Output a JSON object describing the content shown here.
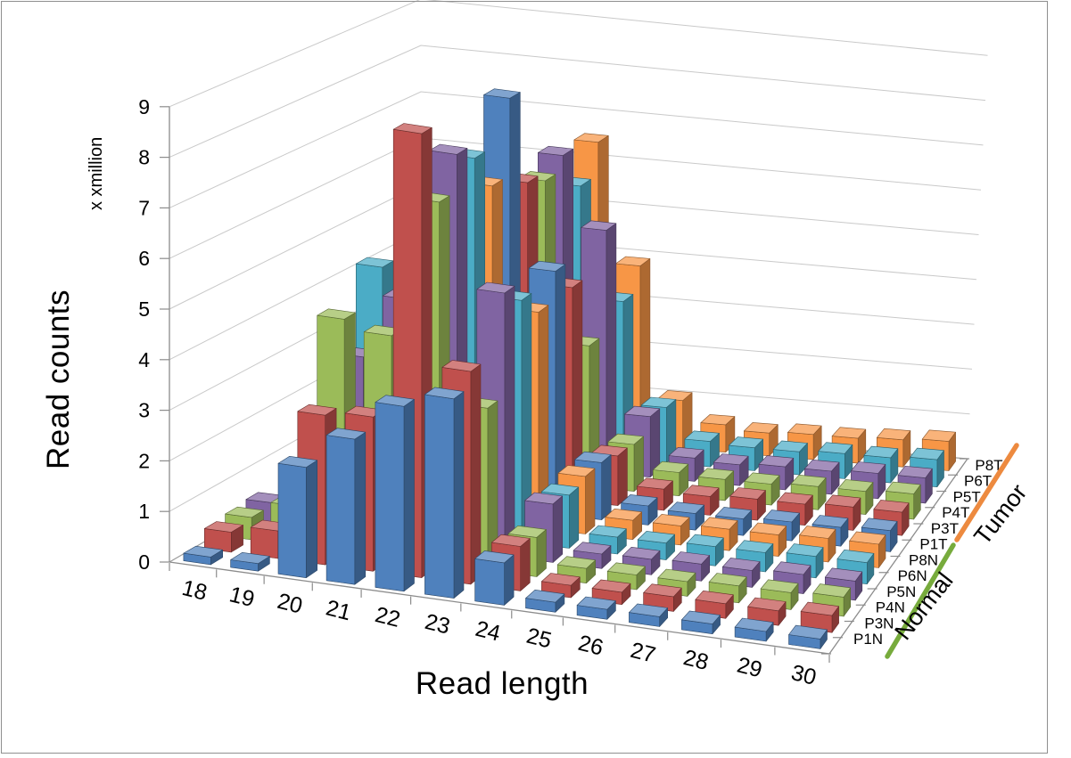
{
  "figure": {
    "background": "#ffffff",
    "border_color": "#8f8f8f"
  },
  "chart_data": {
    "type": "bar",
    "subtype": "3d-column",
    "title": "",
    "xlabel": "Read length",
    "ylabel": "Read counts",
    "y_unit_label": "x xmillion",
    "ylim": [
      0,
      9
    ],
    "yticks": [
      0,
      1,
      2,
      3,
      4,
      5,
      6,
      7,
      8,
      9
    ],
    "categories": [
      18,
      19,
      20,
      21,
      22,
      23,
      24,
      25,
      26,
      27,
      28,
      29,
      30
    ],
    "grid": true,
    "legend_position": "none",
    "depth_axis_note": "series are stacked along the 3D depth axis, front (P1N) to back (P8T)",
    "groups": [
      {
        "label": "Normal",
        "line_color": "#77AB3C",
        "series": [
          "P1N",
          "P3N",
          "P4N",
          "P5N",
          "P6N",
          "P8N"
        ]
      },
      {
        "label": "Tumor",
        "line_color": "#ED8A3F",
        "series": [
          "P1T",
          "P3T",
          "P4T",
          "P5T",
          "P6T",
          "P8T"
        ]
      }
    ],
    "series": [
      {
        "name": "P1N",
        "color": "#4F81BD",
        "values": [
          0.15,
          0.15,
          2.2,
          2.9,
          3.7,
          4.0,
          0.85,
          0.2,
          0.2,
          0.2,
          0.2,
          0.2,
          0.2
        ]
      },
      {
        "name": "P3N",
        "color": "#C0504D",
        "values": [
          0.4,
          0.55,
          3.0,
          3.1,
          8.95,
          4.3,
          0.9,
          0.25,
          0.25,
          0.3,
          0.3,
          0.3,
          0.35
        ]
      },
      {
        "name": "P4N",
        "color": "#9BBB59",
        "values": [
          0.45,
          0.8,
          4.7,
          4.5,
          7.35,
          3.3,
          0.8,
          0.3,
          0.3,
          0.3,
          0.35,
          0.35,
          0.4
        ]
      },
      {
        "name": "P5N",
        "color": "#8064A2",
        "values": [
          0.5,
          1.0,
          3.7,
          5.0,
          8.1,
          5.4,
          1.2,
          0.3,
          0.32,
          0.35,
          0.35,
          0.4,
          0.4
        ]
      },
      {
        "name": "P6N",
        "color": "#4BACC6",
        "values": [
          0.2,
          0.6,
          5.3,
          6.0,
          7.8,
          5.0,
          1.1,
          0.35,
          0.35,
          0.4,
          0.4,
          0.45,
          0.45
        ]
      },
      {
        "name": "P8N",
        "color": "#F79646",
        "values": [
          0.25,
          0.5,
          2.6,
          4.8,
          7.0,
          4.5,
          1.2,
          0.4,
          0.4,
          0.45,
          0.45,
          0.5,
          0.5
        ]
      },
      {
        "name": "P1T",
        "color": "#4F81BD",
        "values": [
          0.15,
          0.2,
          1.9,
          4.6,
          8.6,
          5.1,
          1.2,
          0.4,
          0.35,
          0.35,
          0.4,
          0.4,
          0.45
        ]
      },
      {
        "name": "P3T",
        "color": "#C0504D",
        "values": [
          0.3,
          0.4,
          2.2,
          3.6,
          6.6,
          4.5,
          1.05,
          0.45,
          0.4,
          0.45,
          0.45,
          0.5,
          0.5
        ]
      },
      {
        "name": "P4T",
        "color": "#9BBB59",
        "values": [
          0.25,
          0.45,
          2.0,
          3.8,
          6.4,
          3.0,
          1.0,
          0.5,
          0.45,
          0.45,
          0.5,
          0.5,
          0.55
        ]
      },
      {
        "name": "P5T",
        "color": "#8064A2",
        "values": [
          0.3,
          0.55,
          2.4,
          4.6,
          6.7,
          5.2,
          1.3,
          0.5,
          0.45,
          0.5,
          0.5,
          0.55,
          0.55
        ]
      },
      {
        "name": "P6T",
        "color": "#4BACC6",
        "values": [
          0.2,
          0.4,
          2.1,
          4.4,
          5.8,
          3.4,
          1.2,
          0.55,
          0.5,
          0.5,
          0.55,
          0.55,
          0.6
        ]
      },
      {
        "name": "P8T",
        "color": "#F79646",
        "values": [
          0.25,
          0.45,
          1.9,
          4.0,
          6.5,
          3.9,
          1.05,
          0.6,
          0.5,
          0.55,
          0.55,
          0.6,
          0.65
        ]
      }
    ],
    "styles": {
      "gridline_color": "#c9c9c9",
      "floor_edge_color": "#9a9a9a",
      "axis_color": "#8c8c8c",
      "tick_color": "#8c8c8c",
      "text_color": "#000000"
    }
  }
}
